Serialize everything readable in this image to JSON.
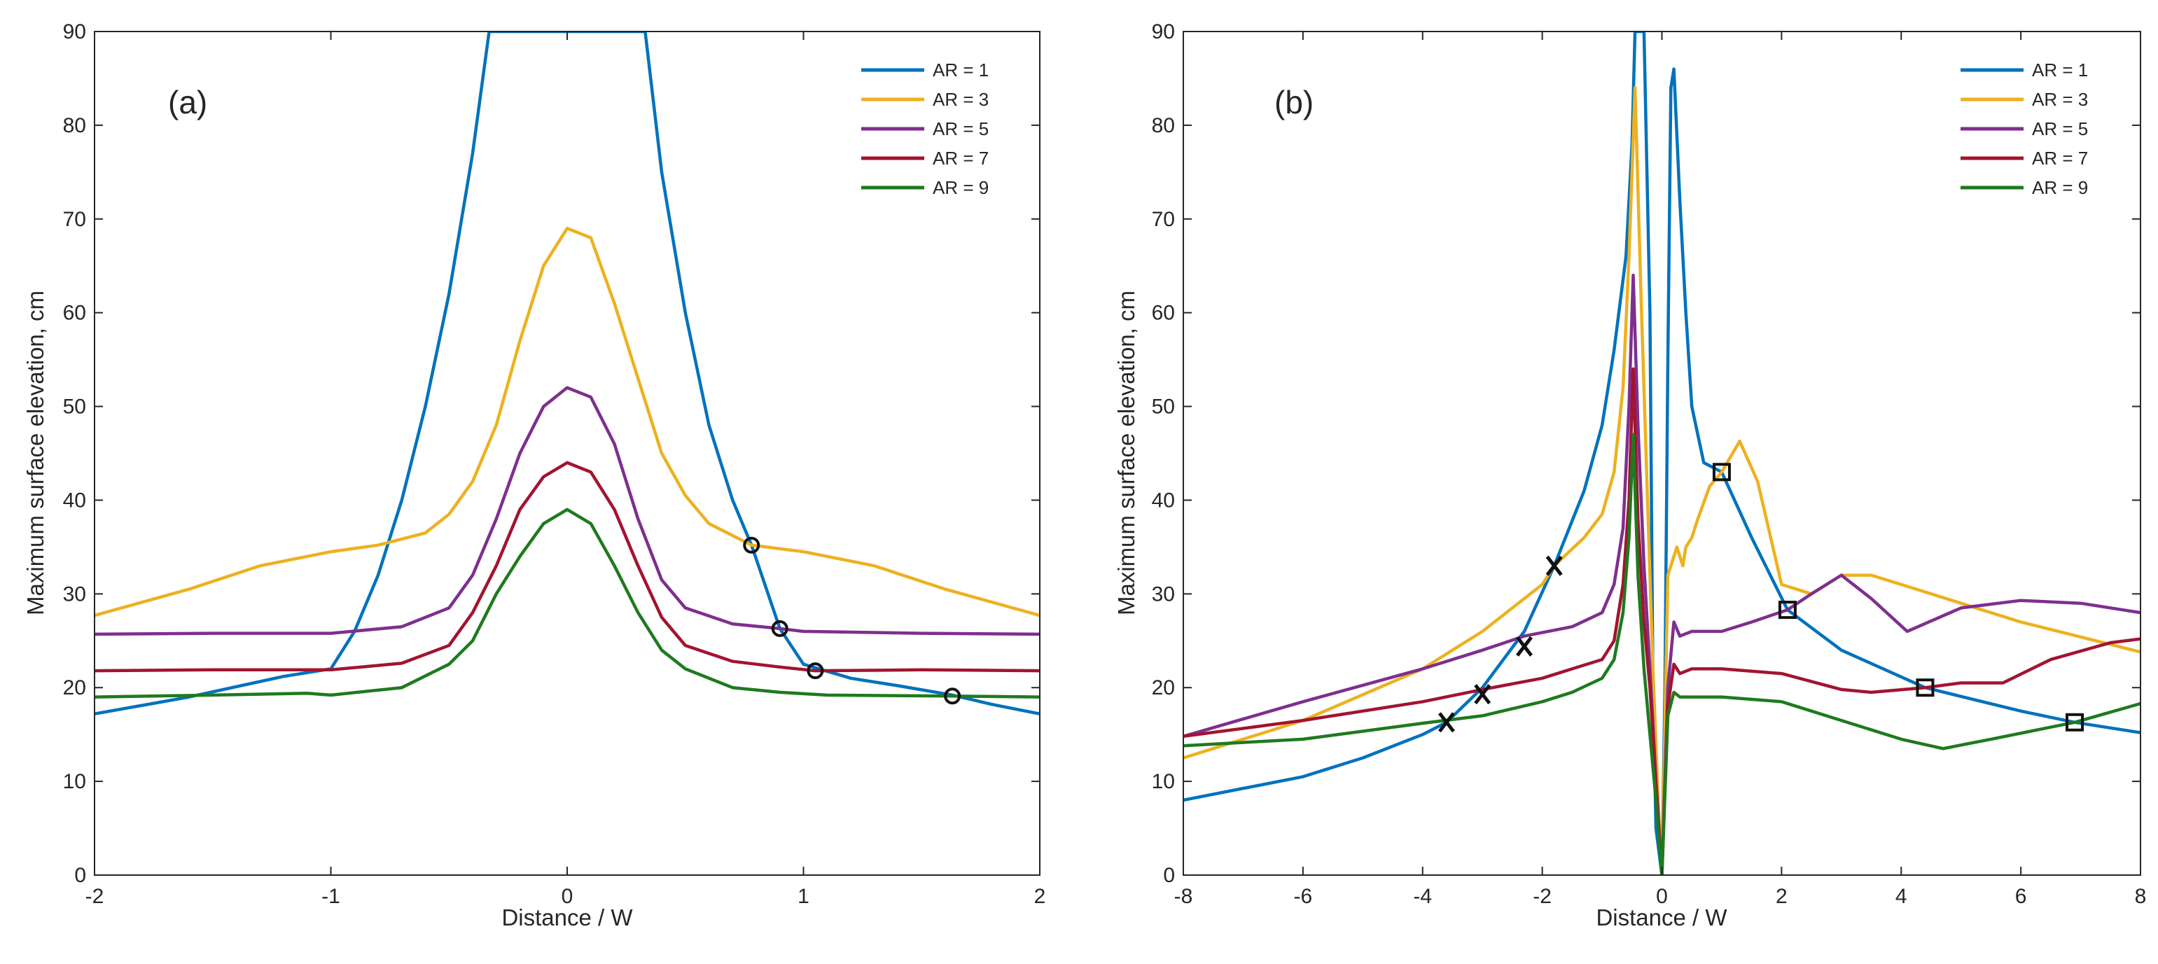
{
  "chart_data": [
    {
      "type": "line",
      "panel_label": "(a)",
      "xlabel": "Distance / W",
      "ylabel": "Maximum surface elevation, cm",
      "xlim": [
        -2,
        2
      ],
      "ylim": [
        0,
        90
      ],
      "xticks": [
        -2,
        -1,
        0,
        1,
        2
      ],
      "yticks": [
        0,
        10,
        20,
        30,
        40,
        50,
        60,
        70,
        80,
        90
      ],
      "grid": false,
      "legend_position": "top-right",
      "series": [
        {
          "name": "AR = 1",
          "color": "#0072BD",
          "x": [
            -2,
            -1.6,
            -1.2,
            -1.0,
            -0.9,
            -0.8,
            -0.7,
            -0.6,
            -0.5,
            -0.4,
            -0.33,
            0.33,
            0.4,
            0.5,
            0.6,
            0.7,
            0.78,
            0.9,
            1.0,
            1.2,
            1.4,
            1.63,
            1.8,
            2.0
          ],
          "y": [
            17.2,
            19,
            21.2,
            22,
            26,
            32,
            40,
            50,
            62,
            77,
            90,
            90,
            75,
            60,
            48,
            40,
            35.2,
            26.3,
            22.5,
            21,
            20.2,
            19.2,
            18.2,
            17.2
          ]
        },
        {
          "name": "AR = 3",
          "color": "#EDB120",
          "x": [
            -2,
            -1.6,
            -1.3,
            -1.0,
            -0.8,
            -0.6,
            -0.5,
            -0.4,
            -0.3,
            -0.2,
            -0.1,
            0,
            0.1,
            0.2,
            0.3,
            0.4,
            0.5,
            0.6,
            0.78,
            1.0,
            1.3,
            1.6,
            2.0
          ],
          "y": [
            27.7,
            30.5,
            33,
            34.5,
            35.2,
            36.5,
            38.5,
            42,
            48,
            57,
            65,
            69,
            68,
            61,
            53,
            45,
            40.5,
            37.5,
            35.2,
            34.5,
            33,
            30.5,
            27.7
          ]
        },
        {
          "name": "AR = 5",
          "color": "#7E2F8E",
          "x": [
            -2,
            -1.5,
            -1.0,
            -0.7,
            -0.5,
            -0.4,
            -0.3,
            -0.2,
            -0.1,
            0,
            0.1,
            0.2,
            0.3,
            0.4,
            0.5,
            0.7,
            0.9,
            1.0,
            1.5,
            2.0
          ],
          "y": [
            25.7,
            25.8,
            25.8,
            26.5,
            28.5,
            32,
            38,
            45,
            50,
            52,
            51,
            46,
            38,
            31.5,
            28.5,
            26.8,
            26.3,
            26,
            25.8,
            25.7
          ]
        },
        {
          "name": "AR = 7",
          "color": "#A2142F",
          "x": [
            -2,
            -1.5,
            -1.0,
            -0.7,
            -0.5,
            -0.4,
            -0.3,
            -0.2,
            -0.1,
            0,
            0.1,
            0.2,
            0.3,
            0.4,
            0.5,
            0.7,
            0.9,
            1.05,
            1.5,
            2.0
          ],
          "y": [
            21.8,
            21.9,
            21.9,
            22.6,
            24.5,
            28,
            33,
            39,
            42.5,
            44,
            43,
            39,
            33,
            27.5,
            24.5,
            22.8,
            22.2,
            21.8,
            21.9,
            21.8
          ]
        },
        {
          "name": "AR = 9",
          "color": "#1E7A1E",
          "x": [
            -2,
            -1.5,
            -1.1,
            -1.0,
            -0.7,
            -0.5,
            -0.4,
            -0.3,
            -0.2,
            -0.1,
            0,
            0.1,
            0.2,
            0.3,
            0.4,
            0.5,
            0.7,
            0.9,
            1.1,
            1.63,
            2.0
          ],
          "y": [
            19,
            19.2,
            19.4,
            19.2,
            20,
            22.5,
            25,
            30,
            34,
            37.5,
            39,
            37.5,
            33,
            28,
            24,
            22,
            20,
            19.5,
            19.2,
            19.1,
            19
          ]
        }
      ],
      "markers": [
        {
          "shape": "circle",
          "x": 0.78,
          "y": 35.2
        },
        {
          "shape": "circle",
          "x": 0.9,
          "y": 26.3
        },
        {
          "shape": "circle",
          "x": 1.05,
          "y": 21.8
        },
        {
          "shape": "circle",
          "x": 1.63,
          "y": 19.1
        }
      ]
    },
    {
      "type": "line",
      "panel_label": "(b)",
      "xlabel": "Distance / W",
      "ylabel": "Maximum surface elevation, cm",
      "xlim": [
        -8,
        8
      ],
      "ylim": [
        0,
        90
      ],
      "xticks": [
        -8,
        -6,
        -4,
        -2,
        0,
        2,
        4,
        6,
        8
      ],
      "yticks": [
        0,
        10,
        20,
        30,
        40,
        50,
        60,
        70,
        80,
        90
      ],
      "grid": false,
      "legend_position": "top-right",
      "series": [
        {
          "name": "AR = 1",
          "color": "#0072BD",
          "x": [
            -8,
            -6,
            -5,
            -4,
            -3.6,
            -3,
            -2.3,
            -1.8,
            -1.3,
            -1.0,
            -0.8,
            -0.6,
            -0.5,
            -0.45,
            -0.3,
            -0.2,
            -0.15,
            -0.1,
            0,
            0.05,
            0.1,
            0.15,
            0.2,
            0.3,
            0.4,
            0.5,
            0.7,
            1.0,
            1.5,
            2.1,
            3.0,
            4.4,
            6.0,
            6.9,
            8.0
          ],
          "y": [
            8,
            10.5,
            12.5,
            15,
            16.3,
            20,
            26,
            33,
            41,
            48,
            56,
            66,
            78,
            90,
            90,
            60,
            20,
            5,
            0,
            20,
            55,
            84,
            86,
            72,
            60,
            50,
            44,
            43,
            36,
            28.3,
            24,
            20,
            17.5,
            16.3,
            15.2
          ]
        },
        {
          "name": "AR = 3",
          "color": "#EDB120",
          "x": [
            -8,
            -6,
            -4,
            -3,
            -2,
            -1.8,
            -1.3,
            -1.0,
            -0.8,
            -0.65,
            -0.55,
            -0.45,
            -0.35,
            -0.25,
            -0.15,
            -0.05,
            0,
            0.1,
            0.25,
            0.35,
            0.4,
            0.5,
            0.6,
            0.8,
            1.0,
            1.3,
            1.6,
            2.0,
            2.5,
            3.0,
            3.5,
            4.0,
            6.0,
            8.0
          ],
          "y": [
            12.5,
            16.5,
            22,
            26,
            31,
            33,
            36,
            38.5,
            43,
            52,
            66,
            84,
            62,
            42,
            22,
            6,
            0,
            32,
            35,
            33,
            35,
            36,
            38,
            41.5,
            43,
            46.3,
            42,
            31,
            30,
            32,
            32,
            31,
            27,
            23.8
          ]
        },
        {
          "name": "AR = 5",
          "color": "#7E2F8E",
          "x": [
            -8,
            -6,
            -4,
            -3,
            -2.3,
            -1.5,
            -1.0,
            -0.8,
            -0.65,
            -0.55,
            -0.48,
            -0.4,
            -0.3,
            -0.2,
            -0.1,
            0,
            0.1,
            0.2,
            0.3,
            0.5,
            1.0,
            1.5,
            2.1,
            2.5,
            3.0,
            3.5,
            4.1,
            5.0,
            6.0,
            7.0,
            8.0
          ],
          "y": [
            14.8,
            18.5,
            22,
            24,
            25.5,
            26.5,
            28,
            31,
            37,
            50,
            64,
            48,
            33,
            22,
            10,
            0,
            20,
            27,
            25.5,
            26,
            26,
            27,
            28.3,
            30,
            32,
            29.5,
            26,
            28.5,
            29.3,
            29,
            28
          ]
        },
        {
          "name": "AR = 7",
          "color": "#A2142F",
          "x": [
            -8,
            -6,
            -4,
            -3,
            -2,
            -1.5,
            -1.0,
            -0.8,
            -0.65,
            -0.55,
            -0.48,
            -0.4,
            -0.3,
            -0.2,
            -0.1,
            0,
            0.1,
            0.2,
            0.3,
            0.5,
            1.0,
            2.0,
            3.0,
            3.5,
            4.4,
            5.0,
            5.7,
            6.5,
            7.5,
            8.0
          ],
          "y": [
            14.8,
            16.5,
            18.5,
            19.8,
            21,
            22,
            23,
            25,
            31,
            40,
            54,
            38,
            27,
            20,
            10,
            0,
            18,
            22.5,
            21.5,
            22,
            22,
            21.5,
            19.8,
            19.5,
            20,
            20.5,
            20.5,
            23,
            24.8,
            25.2
          ]
        },
        {
          "name": "AR = 9",
          "color": "#1E7A1E",
          "x": [
            -8,
            -6,
            -4,
            -3,
            -2,
            -1.5,
            -1.0,
            -0.8,
            -0.65,
            -0.55,
            -0.48,
            -0.4,
            -0.3,
            -0.2,
            -0.1,
            0,
            0.1,
            0.2,
            0.3,
            0.5,
            1.0,
            2.0,
            3.0,
            4.0,
            4.7,
            5.5,
            6.9,
            8.0
          ],
          "y": [
            13.8,
            14.5,
            16.2,
            17,
            18.5,
            19.5,
            21,
            23,
            28,
            36,
            47,
            32,
            22,
            15,
            8,
            0,
            17,
            19.5,
            19,
            19,
            19,
            18.5,
            16.5,
            14.5,
            13.5,
            14.5,
            16.3,
            18.3
          ]
        }
      ],
      "markers": [
        {
          "shape": "x",
          "x": -3.6,
          "y": 16.3
        },
        {
          "shape": "x",
          "x": -3.0,
          "y": 19.3
        },
        {
          "shape": "x",
          "x": -2.3,
          "y": 24.4
        },
        {
          "shape": "x",
          "x": -1.8,
          "y": 33
        },
        {
          "shape": "square",
          "x": 1.0,
          "y": 43
        },
        {
          "shape": "square",
          "x": 2.1,
          "y": 28.3
        },
        {
          "shape": "square",
          "x": 4.4,
          "y": 20
        },
        {
          "shape": "square",
          "x": 6.9,
          "y": 16.3
        }
      ]
    }
  ]
}
